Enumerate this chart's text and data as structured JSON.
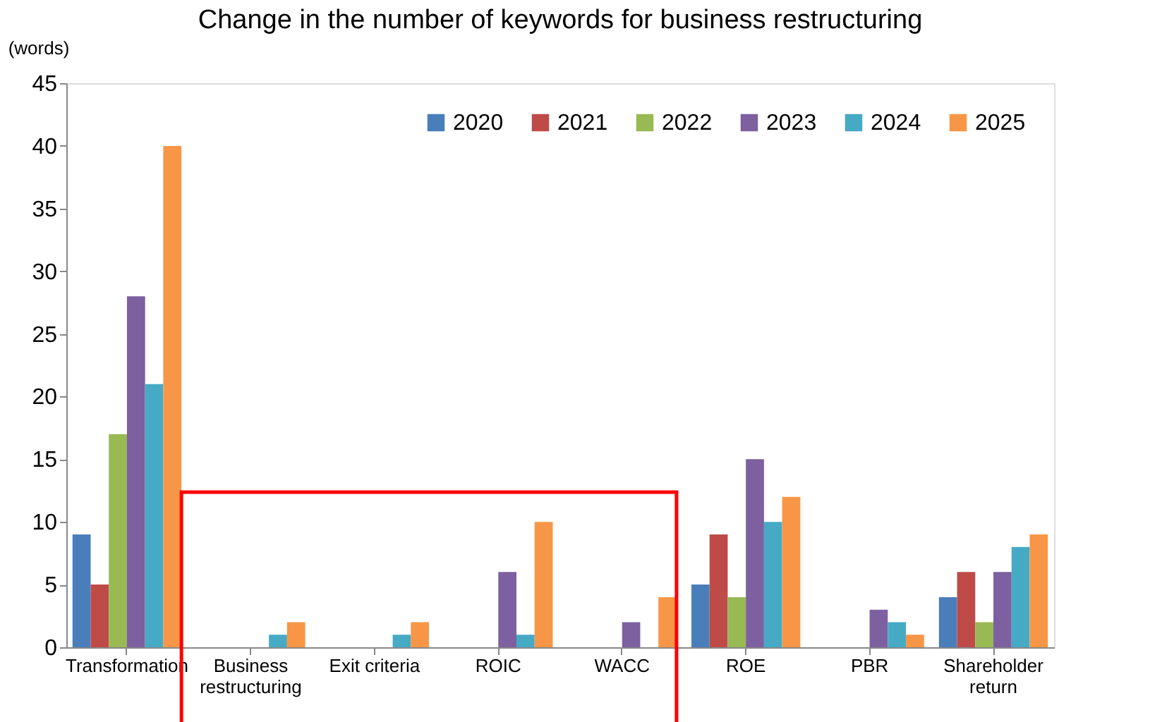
{
  "chart_data": {
    "type": "bar",
    "title": "Change in the number of keywords for business restructuring",
    "ylabel": "(words)",
    "categories": [
      "Transformation",
      "Business\nrestructuring",
      "Exit criteria",
      "ROIC",
      "WACC",
      "ROE",
      "PBR",
      "Shareholder\nreturn"
    ],
    "series": [
      {
        "name": "2020",
        "color": "#4a7ebb",
        "values": [
          9,
          0,
          0,
          0,
          0,
          5,
          0,
          4
        ]
      },
      {
        "name": "2021",
        "color": "#be4b48",
        "values": [
          5,
          0,
          0,
          0,
          0,
          9,
          0,
          6
        ]
      },
      {
        "name": "2022",
        "color": "#98b954",
        "values": [
          17,
          0,
          0,
          0,
          0,
          4,
          0,
          2
        ]
      },
      {
        "name": "2023",
        "color": "#7d60a0",
        "values": [
          28,
          0,
          0,
          6,
          2,
          15,
          3,
          6
        ]
      },
      {
        "name": "2024",
        "color": "#46aac5",
        "values": [
          21,
          1,
          1,
          1,
          0,
          10,
          2,
          8
        ]
      },
      {
        "name": "2025",
        "color": "#f79646",
        "values": [
          40,
          2,
          2,
          10,
          4,
          12,
          1,
          9
        ]
      }
    ],
    "ylim": [
      0,
      45
    ],
    "yticks": [
      0,
      5,
      10,
      15,
      20,
      25,
      30,
      35,
      40,
      45
    ],
    "grid": false,
    "legend": "top right"
  }
}
